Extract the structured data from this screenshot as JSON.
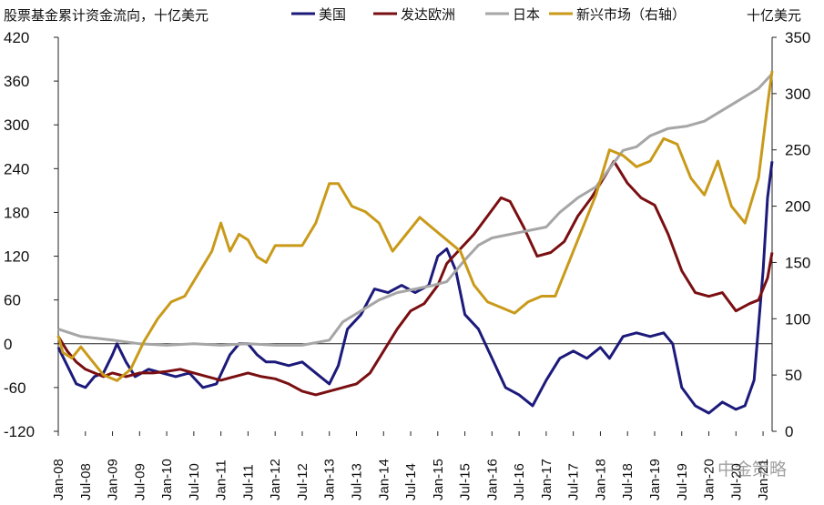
{
  "chart_data": {
    "type": "line",
    "title": "股票基金累计资金流向，十亿美元",
    "y_right_unit": "十亿美元",
    "ylim_left": [
      -120,
      420
    ],
    "yticks_left": [
      -120,
      -60,
      0,
      60,
      120,
      180,
      240,
      300,
      360,
      420
    ],
    "ylim_right": [
      0,
      350
    ],
    "yticks_right": [
      0,
      50,
      100,
      150,
      200,
      250,
      300,
      350
    ],
    "x_labels": [
      "Jan-08",
      "Jul-08",
      "Jan-09",
      "Jul-09",
      "Jan-10",
      "Jul-10",
      "Jan-11",
      "Jul-11",
      "Jan-12",
      "Jul-12",
      "Jan-13",
      "Jul-13",
      "Jan-14",
      "Jul-14",
      "Jan-15",
      "Jul-15",
      "Jan-16",
      "Jul-16",
      "Jan-17",
      "Jul-17",
      "Jan-18",
      "Jul-18",
      "Jan-19",
      "Jul-19",
      "Jan-20",
      "Jul-20",
      "Jan-21"
    ],
    "x_range": [
      "2008-01",
      "2021-03"
    ],
    "legend_position": "top",
    "series": [
      {
        "name": "美国",
        "axis": "left",
        "color": "#1c1a7a",
        "points": [
          [
            "2008-01",
            -5
          ],
          [
            "2008-03",
            -30
          ],
          [
            "2008-05",
            -55
          ],
          [
            "2008-07",
            -60
          ],
          [
            "2008-09",
            -45
          ],
          [
            "2008-11",
            -40
          ],
          [
            "2009-01",
            -15
          ],
          [
            "2009-02",
            0
          ],
          [
            "2009-04",
            -25
          ],
          [
            "2009-06",
            -45
          ],
          [
            "2009-09",
            -35
          ],
          [
            "2009-12",
            -40
          ],
          [
            "2010-03",
            -45
          ],
          [
            "2010-06",
            -40
          ],
          [
            "2010-09",
            -60
          ],
          [
            "2010-12",
            -55
          ],
          [
            "2011-03",
            -15
          ],
          [
            "2011-05",
            0
          ],
          [
            "2011-07",
            0
          ],
          [
            "2011-09",
            -15
          ],
          [
            "2011-11",
            -25
          ],
          [
            "2012-01",
            -25
          ],
          [
            "2012-04",
            -30
          ],
          [
            "2012-07",
            -25
          ],
          [
            "2012-10",
            -40
          ],
          [
            "2013-01",
            -55
          ],
          [
            "2013-03",
            -30
          ],
          [
            "2013-05",
            20
          ],
          [
            "2013-08",
            40
          ],
          [
            "2013-11",
            75
          ],
          [
            "2014-02",
            70
          ],
          [
            "2014-05",
            80
          ],
          [
            "2014-08",
            70
          ],
          [
            "2014-11",
            80
          ],
          [
            "2015-01",
            120
          ],
          [
            "2015-03",
            130
          ],
          [
            "2015-05",
            100
          ],
          [
            "2015-07",
            40
          ],
          [
            "2015-10",
            20
          ],
          [
            "2016-01",
            -20
          ],
          [
            "2016-04",
            -60
          ],
          [
            "2016-07",
            -70
          ],
          [
            "2016-10",
            -85
          ],
          [
            "2017-01",
            -50
          ],
          [
            "2017-04",
            -20
          ],
          [
            "2017-07",
            -10
          ],
          [
            "2017-10",
            -20
          ],
          [
            "2018-01",
            -5
          ],
          [
            "2018-03",
            -20
          ],
          [
            "2018-06",
            10
          ],
          [
            "2018-09",
            15
          ],
          [
            "2018-12",
            10
          ],
          [
            "2019-03",
            15
          ],
          [
            "2019-05",
            0
          ],
          [
            "2019-07",
            -60
          ],
          [
            "2019-10",
            -85
          ],
          [
            "2020-01",
            -95
          ],
          [
            "2020-04",
            -80
          ],
          [
            "2020-07",
            -90
          ],
          [
            "2020-09",
            -85
          ],
          [
            "2020-11",
            -50
          ],
          [
            "2021-01",
            100
          ],
          [
            "2021-02",
            200
          ],
          [
            "2021-03",
            250
          ]
        ]
      },
      {
        "name": "发达欧洲",
        "axis": "left",
        "color": "#7a0f12",
        "points": [
          [
            "2008-01",
            10
          ],
          [
            "2008-03",
            -10
          ],
          [
            "2008-05",
            -25
          ],
          [
            "2008-07",
            -35
          ],
          [
            "2008-09",
            -40
          ],
          [
            "2008-11",
            -45
          ],
          [
            "2009-01",
            -40
          ],
          [
            "2009-04",
            -45
          ],
          [
            "2009-07",
            -40
          ],
          [
            "2009-10",
            -40
          ],
          [
            "2010-01",
            -38
          ],
          [
            "2010-04",
            -35
          ],
          [
            "2010-07",
            -40
          ],
          [
            "2010-10",
            -45
          ],
          [
            "2011-01",
            -50
          ],
          [
            "2011-04",
            -45
          ],
          [
            "2011-07",
            -40
          ],
          [
            "2011-10",
            -45
          ],
          [
            "2012-01",
            -48
          ],
          [
            "2012-04",
            -55
          ],
          [
            "2012-07",
            -65
          ],
          [
            "2012-10",
            -70
          ],
          [
            "2013-01",
            -65
          ],
          [
            "2013-04",
            -60
          ],
          [
            "2013-07",
            -55
          ],
          [
            "2013-10",
            -40
          ],
          [
            "2014-01",
            -10
          ],
          [
            "2014-04",
            20
          ],
          [
            "2014-07",
            45
          ],
          [
            "2014-10",
            55
          ],
          [
            "2015-01",
            80
          ],
          [
            "2015-03",
            110
          ],
          [
            "2015-06",
            130
          ],
          [
            "2015-09",
            150
          ],
          [
            "2015-12",
            175
          ],
          [
            "2016-03",
            200
          ],
          [
            "2016-05",
            195
          ],
          [
            "2016-08",
            160
          ],
          [
            "2016-11",
            120
          ],
          [
            "2017-02",
            125
          ],
          [
            "2017-05",
            140
          ],
          [
            "2017-08",
            175
          ],
          [
            "2017-11",
            200
          ],
          [
            "2018-02",
            230
          ],
          [
            "2018-04",
            250
          ],
          [
            "2018-07",
            220
          ],
          [
            "2018-10",
            200
          ],
          [
            "2019-01",
            190
          ],
          [
            "2019-04",
            150
          ],
          [
            "2019-07",
            100
          ],
          [
            "2019-10",
            70
          ],
          [
            "2020-01",
            65
          ],
          [
            "2020-04",
            70
          ],
          [
            "2020-07",
            45
          ],
          [
            "2020-10",
            55
          ],
          [
            "2020-12",
            60
          ],
          [
            "2021-02",
            90
          ],
          [
            "2021-03",
            125
          ]
        ]
      },
      {
        "name": "日本",
        "axis": "left",
        "color": "#a6a6a6",
        "points": [
          [
            "2008-01",
            20
          ],
          [
            "2008-06",
            10
          ],
          [
            "2009-01",
            5
          ],
          [
            "2009-07",
            0
          ],
          [
            "2010-01",
            -2
          ],
          [
            "2010-07",
            0
          ],
          [
            "2011-01",
            -2
          ],
          [
            "2011-07",
            0
          ],
          [
            "2012-01",
            -2
          ],
          [
            "2012-07",
            -2
          ],
          [
            "2013-01",
            5
          ],
          [
            "2013-04",
            30
          ],
          [
            "2013-08",
            45
          ],
          [
            "2013-12",
            60
          ],
          [
            "2014-04",
            70
          ],
          [
            "2014-08",
            75
          ],
          [
            "2014-12",
            80
          ],
          [
            "2015-03",
            85
          ],
          [
            "2015-07",
            115
          ],
          [
            "2015-10",
            135
          ],
          [
            "2016-01",
            145
          ],
          [
            "2016-05",
            150
          ],
          [
            "2016-09",
            155
          ],
          [
            "2017-01",
            160
          ],
          [
            "2017-04",
            180
          ],
          [
            "2017-08",
            200
          ],
          [
            "2017-12",
            215
          ],
          [
            "2018-03",
            240
          ],
          [
            "2018-06",
            265
          ],
          [
            "2018-09",
            270
          ],
          [
            "2018-12",
            285
          ],
          [
            "2019-04",
            295
          ],
          [
            "2019-08",
            298
          ],
          [
            "2019-12",
            305
          ],
          [
            "2020-04",
            320
          ],
          [
            "2020-08",
            335
          ],
          [
            "2020-12",
            350
          ],
          [
            "2021-03",
            370
          ]
        ]
      },
      {
        "name": "新兴市场（右轴）",
        "axis": "right",
        "color": "#c99a1a",
        "points": [
          [
            "2008-01",
            85
          ],
          [
            "2008-02",
            70
          ],
          [
            "2008-04",
            65
          ],
          [
            "2008-06",
            75
          ],
          [
            "2008-09",
            60
          ],
          [
            "2008-11",
            50
          ],
          [
            "2009-02",
            45
          ],
          [
            "2009-05",
            55
          ],
          [
            "2009-08",
            80
          ],
          [
            "2009-11",
            100
          ],
          [
            "2010-02",
            115
          ],
          [
            "2010-05",
            120
          ],
          [
            "2010-08",
            140
          ],
          [
            "2010-11",
            160
          ],
          [
            "2011-01",
            185
          ],
          [
            "2011-03",
            160
          ],
          [
            "2011-05",
            175
          ],
          [
            "2011-07",
            170
          ],
          [
            "2011-09",
            155
          ],
          [
            "2011-11",
            150
          ],
          [
            "2012-01",
            165
          ],
          [
            "2012-04",
            165
          ],
          [
            "2012-07",
            165
          ],
          [
            "2012-10",
            185
          ],
          [
            "2013-01",
            220
          ],
          [
            "2013-03",
            220
          ],
          [
            "2013-06",
            200
          ],
          [
            "2013-09",
            195
          ],
          [
            "2013-12",
            185
          ],
          [
            "2014-03",
            160
          ],
          [
            "2014-06",
            175
          ],
          [
            "2014-09",
            190
          ],
          [
            "2014-12",
            180
          ],
          [
            "2015-03",
            170
          ],
          [
            "2015-06",
            160
          ],
          [
            "2015-09",
            130
          ],
          [
            "2015-12",
            115
          ],
          [
            "2016-03",
            110
          ],
          [
            "2016-06",
            105
          ],
          [
            "2016-09",
            115
          ],
          [
            "2016-12",
            120
          ],
          [
            "2017-03",
            120
          ],
          [
            "2017-06",
            150
          ],
          [
            "2017-09",
            180
          ],
          [
            "2017-12",
            210
          ],
          [
            "2018-03",
            250
          ],
          [
            "2018-06",
            245
          ],
          [
            "2018-09",
            235
          ],
          [
            "2018-12",
            240
          ],
          [
            "2019-03",
            260
          ],
          [
            "2019-06",
            255
          ],
          [
            "2019-09",
            225
          ],
          [
            "2019-12",
            210
          ],
          [
            "2020-03",
            240
          ],
          [
            "2020-06",
            200
          ],
          [
            "2020-09",
            185
          ],
          [
            "2020-12",
            225
          ],
          [
            "2021-02",
            290
          ],
          [
            "2021-03",
            320
          ]
        ]
      }
    ]
  },
  "watermark": "中金策略"
}
